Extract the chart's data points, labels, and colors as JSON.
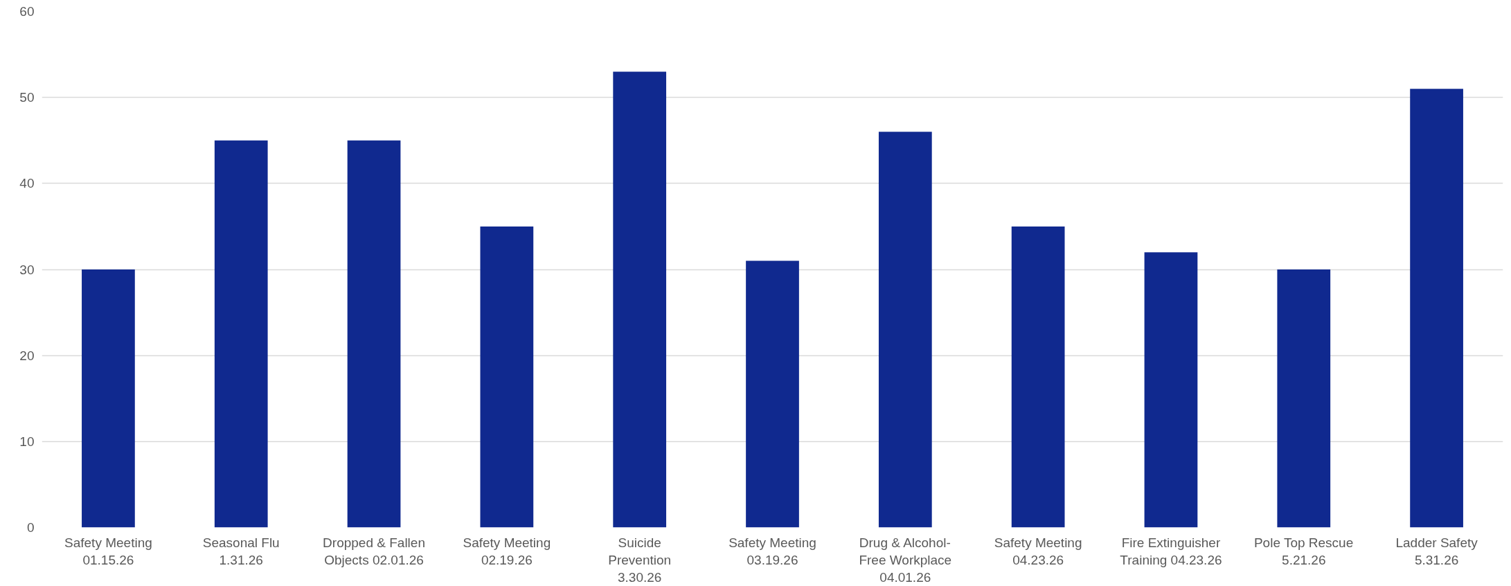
{
  "chart_data": {
    "type": "bar",
    "categories": [
      "Safety Meeting\n01.15.26",
      "Seasonal Flu\n1.31.26",
      "Dropped & Fallen\nObjects 02.01.26",
      "Safety Meeting\n02.19.26",
      "Suicide\nPrevention\n3.30.26",
      "Safety Meeting\n03.19.26",
      "Drug & Alcohol-\nFree Workplace\n04.01.26",
      "Safety Meeting\n04.23.26",
      "Fire Extinguisher\nTraining 04.23.26",
      "Pole Top Rescue\n5.21.26",
      "Ladder Safety\n5.31.26"
    ],
    "values": [
      30,
      45,
      45,
      35,
      53,
      31,
      46,
      35,
      32,
      30,
      51
    ],
    "color": "#10298f",
    "ylim": [
      0,
      60
    ],
    "yticks": [
      0,
      10,
      20,
      30,
      40,
      50,
      60
    ],
    "grid": "y"
  }
}
